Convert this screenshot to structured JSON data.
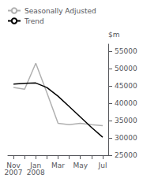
{
  "chart_data": {
    "type": "line",
    "ylabel": "$m",
    "categories": [
      "Nov\n2007",
      null,
      "Jan\n2008",
      null,
      "Mar",
      null,
      "May",
      null,
      "Jul"
    ],
    "series": [
      {
        "name": "Seasonally Adjusted",
        "color": "#b0b0b0",
        "values": [
          44500,
          44000,
          51500,
          43000,
          34200,
          33800,
          34200,
          33800,
          33500
        ]
      },
      {
        "name": "Trend",
        "color": "#000000",
        "values": [
          45500,
          45700,
          45800,
          44500,
          42000,
          39000,
          36000,
          33000,
          30200
        ]
      }
    ],
    "ylim": [
      25000,
      57000
    ],
    "yticks": [
      25000,
      30000,
      35000,
      40000,
      45000,
      50000,
      55000
    ],
    "grid": false,
    "legend": "upper left"
  }
}
